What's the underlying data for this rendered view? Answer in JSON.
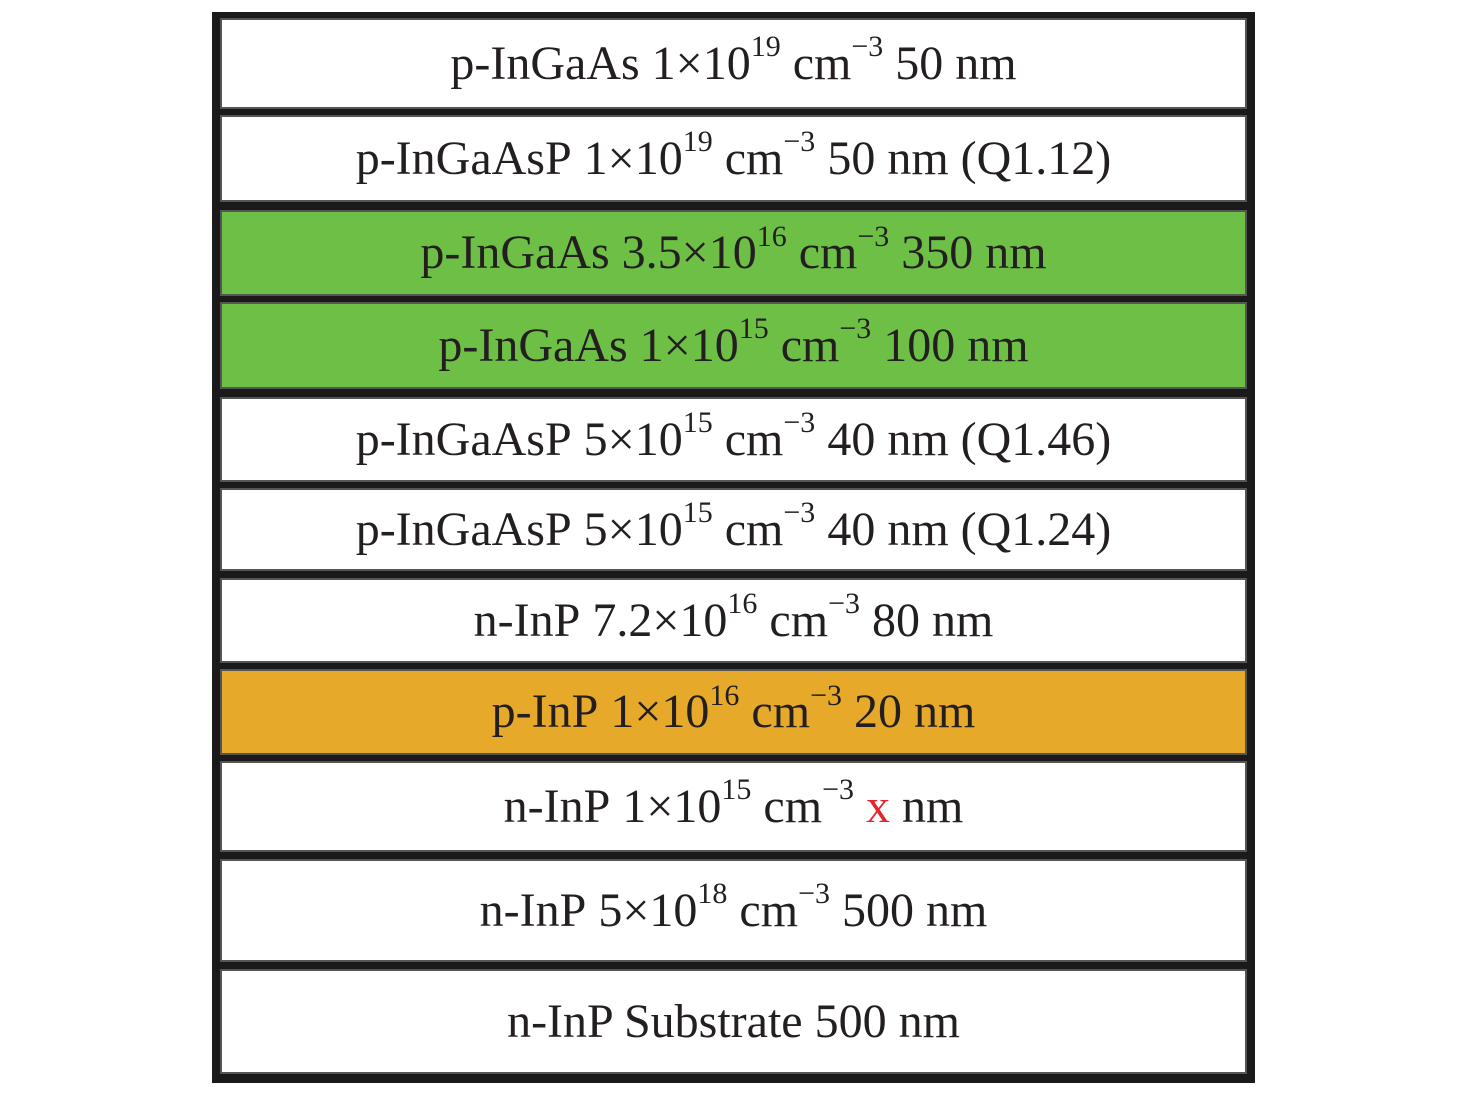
{
  "colors": {
    "white_layer": "#ffffff",
    "absorber_layer": "#6dbf45",
    "charge_layer": "#e6a92a",
    "variable_text": "#e3262d",
    "frame": "#1a1a1a"
  },
  "layers": [
    {
      "material": "p-InGaAs",
      "mantissa": "1×10",
      "exponent": "19",
      "unit": "cm",
      "unit_exp": "−3",
      "thickness": "50 nm",
      "thickness_prefix": "",
      "thickness_suffix": "",
      "extra": "",
      "fill": "white"
    },
    {
      "material": "p-InGaAsP",
      "mantissa": "1×10",
      "exponent": "19",
      "unit": "cm",
      "unit_exp": "−3",
      "thickness": "50 nm",
      "thickness_prefix": "",
      "thickness_suffix": "",
      "extra": "(Q1.12)",
      "fill": "white"
    },
    {
      "material": "p-InGaAs",
      "mantissa": "3.5×10",
      "exponent": "16",
      "unit": "cm",
      "unit_exp": "−3",
      "thickness": "350 nm",
      "thickness_prefix": "",
      "thickness_suffix": "",
      "extra": "",
      "fill": "green"
    },
    {
      "material": "p-InGaAs",
      "mantissa": "1×10",
      "exponent": "15",
      "unit": "cm",
      "unit_exp": "−3",
      "thickness": "100 nm",
      "thickness_prefix": "",
      "thickness_suffix": "",
      "extra": "",
      "fill": "green"
    },
    {
      "material": "p-InGaAsP",
      "mantissa": "5×10",
      "exponent": "15",
      "unit": "cm",
      "unit_exp": "−3",
      "thickness": "40 nm",
      "thickness_prefix": "",
      "thickness_suffix": "",
      "extra": "(Q1.46)",
      "fill": "white"
    },
    {
      "material": "p-InGaAsP",
      "mantissa": "5×10",
      "exponent": "15",
      "unit": "cm",
      "unit_exp": "−3",
      "thickness": "40 nm",
      "thickness_prefix": "",
      "thickness_suffix": "",
      "extra": "(Q1.24)",
      "fill": "white"
    },
    {
      "material": "n-InP",
      "mantissa": "7.2×10",
      "exponent": "16",
      "unit": "cm",
      "unit_exp": "−3",
      "thickness": "80 nm",
      "thickness_prefix": "",
      "thickness_suffix": "",
      "extra": "",
      "fill": "white"
    },
    {
      "material": "p-InP",
      "mantissa": "1×10",
      "exponent": "16",
      "unit": "cm",
      "unit_exp": "−3",
      "thickness": "20 nm",
      "thickness_prefix": "",
      "thickness_suffix": "",
      "extra": "",
      "fill": "orange"
    },
    {
      "material": "n-InP",
      "mantissa": "1×10",
      "exponent": "15",
      "unit": "cm",
      "unit_exp": "−3",
      "thickness": "",
      "thickness_prefix": "x",
      "thickness_suffix": "nm",
      "extra": "",
      "fill": "white"
    },
    {
      "material": "n-InP",
      "mantissa": "5×10",
      "exponent": "18",
      "unit": "cm",
      "unit_exp": "−3",
      "thickness": "500 nm",
      "thickness_prefix": "",
      "thickness_suffix": "",
      "extra": "",
      "fill": "white"
    },
    {
      "label": "n-InP Substrate 500 nm",
      "fill": "white"
    }
  ]
}
